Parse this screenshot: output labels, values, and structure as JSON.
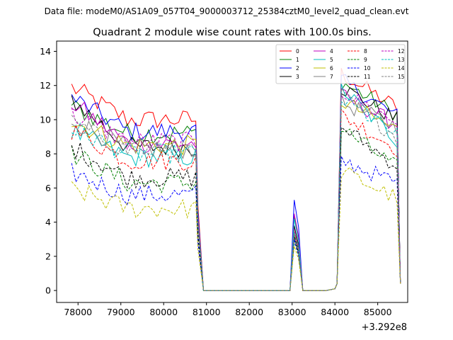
{
  "header": {
    "data_file": "Data file: modeM0/AS1A09_057T04_9000003712_25384cztM0_level2_quad_clean.evt"
  },
  "chart_data": {
    "type": "line",
    "title": "Quadrant 2 module wise count rates with 100.0s bins.",
    "xlabel": "",
    "ylabel": "",
    "x_offset_label": "+3.292e8",
    "xlim": [
      77500,
      85700
    ],
    "ylim": [
      -0.7,
      14.6
    ],
    "x_ticks": [
      78000,
      79000,
      80000,
      81000,
      82000,
      83000,
      84000,
      85000
    ],
    "y_ticks": [
      0,
      2,
      4,
      6,
      8,
      10,
      12,
      14
    ],
    "legend_position": "top-right",
    "gti": [
      {
        "start": 77850,
        "end": 80750
      },
      {
        "start": 84050,
        "end": 85450
      }
    ],
    "series": [
      {
        "name": "0",
        "color": "#ff0000",
        "dash": "solid",
        "level": 10.0,
        "start": 11.9,
        "peak": 12.7,
        "end": 10.7,
        "spike": 3.5
      },
      {
        "name": "1",
        "color": "#008000",
        "dash": "solid",
        "level": 9.2,
        "start": 10.8,
        "peak": 12.2,
        "end": 10.3,
        "spike": 4.3
      },
      {
        "name": "2",
        "color": "#0000ff",
        "dash": "solid",
        "level": 9.3,
        "start": 11.3,
        "peak": 12.3,
        "end": 10.2,
        "spike": 5.3
      },
      {
        "name": "3",
        "color": "#000000",
        "dash": "solid",
        "level": 8.4,
        "start": 11.2,
        "peak": 11.9,
        "end": 10.0,
        "spike": 3.8
      },
      {
        "name": "4",
        "color": "#bf00bf",
        "dash": "solid",
        "level": 8.6,
        "start": 11.0,
        "peak": 11.4,
        "end": 9.7,
        "spike": 4.5
      },
      {
        "name": "5",
        "color": "#00bfbf",
        "dash": "solid",
        "level": 7.8,
        "start": 9.3,
        "peak": 11.8,
        "end": 8.8,
        "spike": 4.2
      },
      {
        "name": "6",
        "color": "#bfbf00",
        "dash": "solid",
        "level": 8.5,
        "start": 9.9,
        "peak": 11.1,
        "end": 9.4,
        "spike": 3.2
      },
      {
        "name": "7",
        "color": "#808080",
        "dash": "solid",
        "level": 8.3,
        "start": 10.0,
        "peak": 11.0,
        "end": 9.6,
        "spike": 3.1
      },
      {
        "name": "8",
        "color": "#ff0000",
        "dash": "dashed",
        "level": 7.6,
        "start": 9.4,
        "peak": 10.3,
        "end": 8.3,
        "spike": 3.3
      },
      {
        "name": "9",
        "color": "#008000",
        "dash": "dashed",
        "level": 6.3,
        "start": 8.0,
        "peak": 9.5,
        "end": 7.2,
        "spike": 2.9
      },
      {
        "name": "10",
        "color": "#0000ff",
        "dash": "dashed",
        "level": 5.6,
        "start": 6.9,
        "peak": 7.6,
        "end": 6.3,
        "spike": 3.0
      },
      {
        "name": "11",
        "color": "#000000",
        "dash": "dashed",
        "level": 6.6,
        "start": 8.4,
        "peak": 9.6,
        "end": 7.3,
        "spike": 3.2
      },
      {
        "name": "12",
        "color": "#bf00bf",
        "dash": "dashed",
        "level": 8.7,
        "start": 10.3,
        "peak": 11.7,
        "end": 9.8,
        "spike": 3.6
      },
      {
        "name": "13",
        "color": "#00bfbf",
        "dash": "dashed",
        "level": 8.0,
        "start": 9.5,
        "peak": 11.2,
        "end": 9.1,
        "spike": 3.4
      },
      {
        "name": "14",
        "color": "#bfbf00",
        "dash": "dashed",
        "level": 4.8,
        "start": 5.9,
        "peak": 7.0,
        "end": 5.4,
        "spike": 2.6
      },
      {
        "name": "15",
        "color": "#808080",
        "dash": "dashed",
        "level": 8.2,
        "start": 9.8,
        "peak": 11.4,
        "end": 9.0,
        "spike": 3.5
      }
    ]
  }
}
